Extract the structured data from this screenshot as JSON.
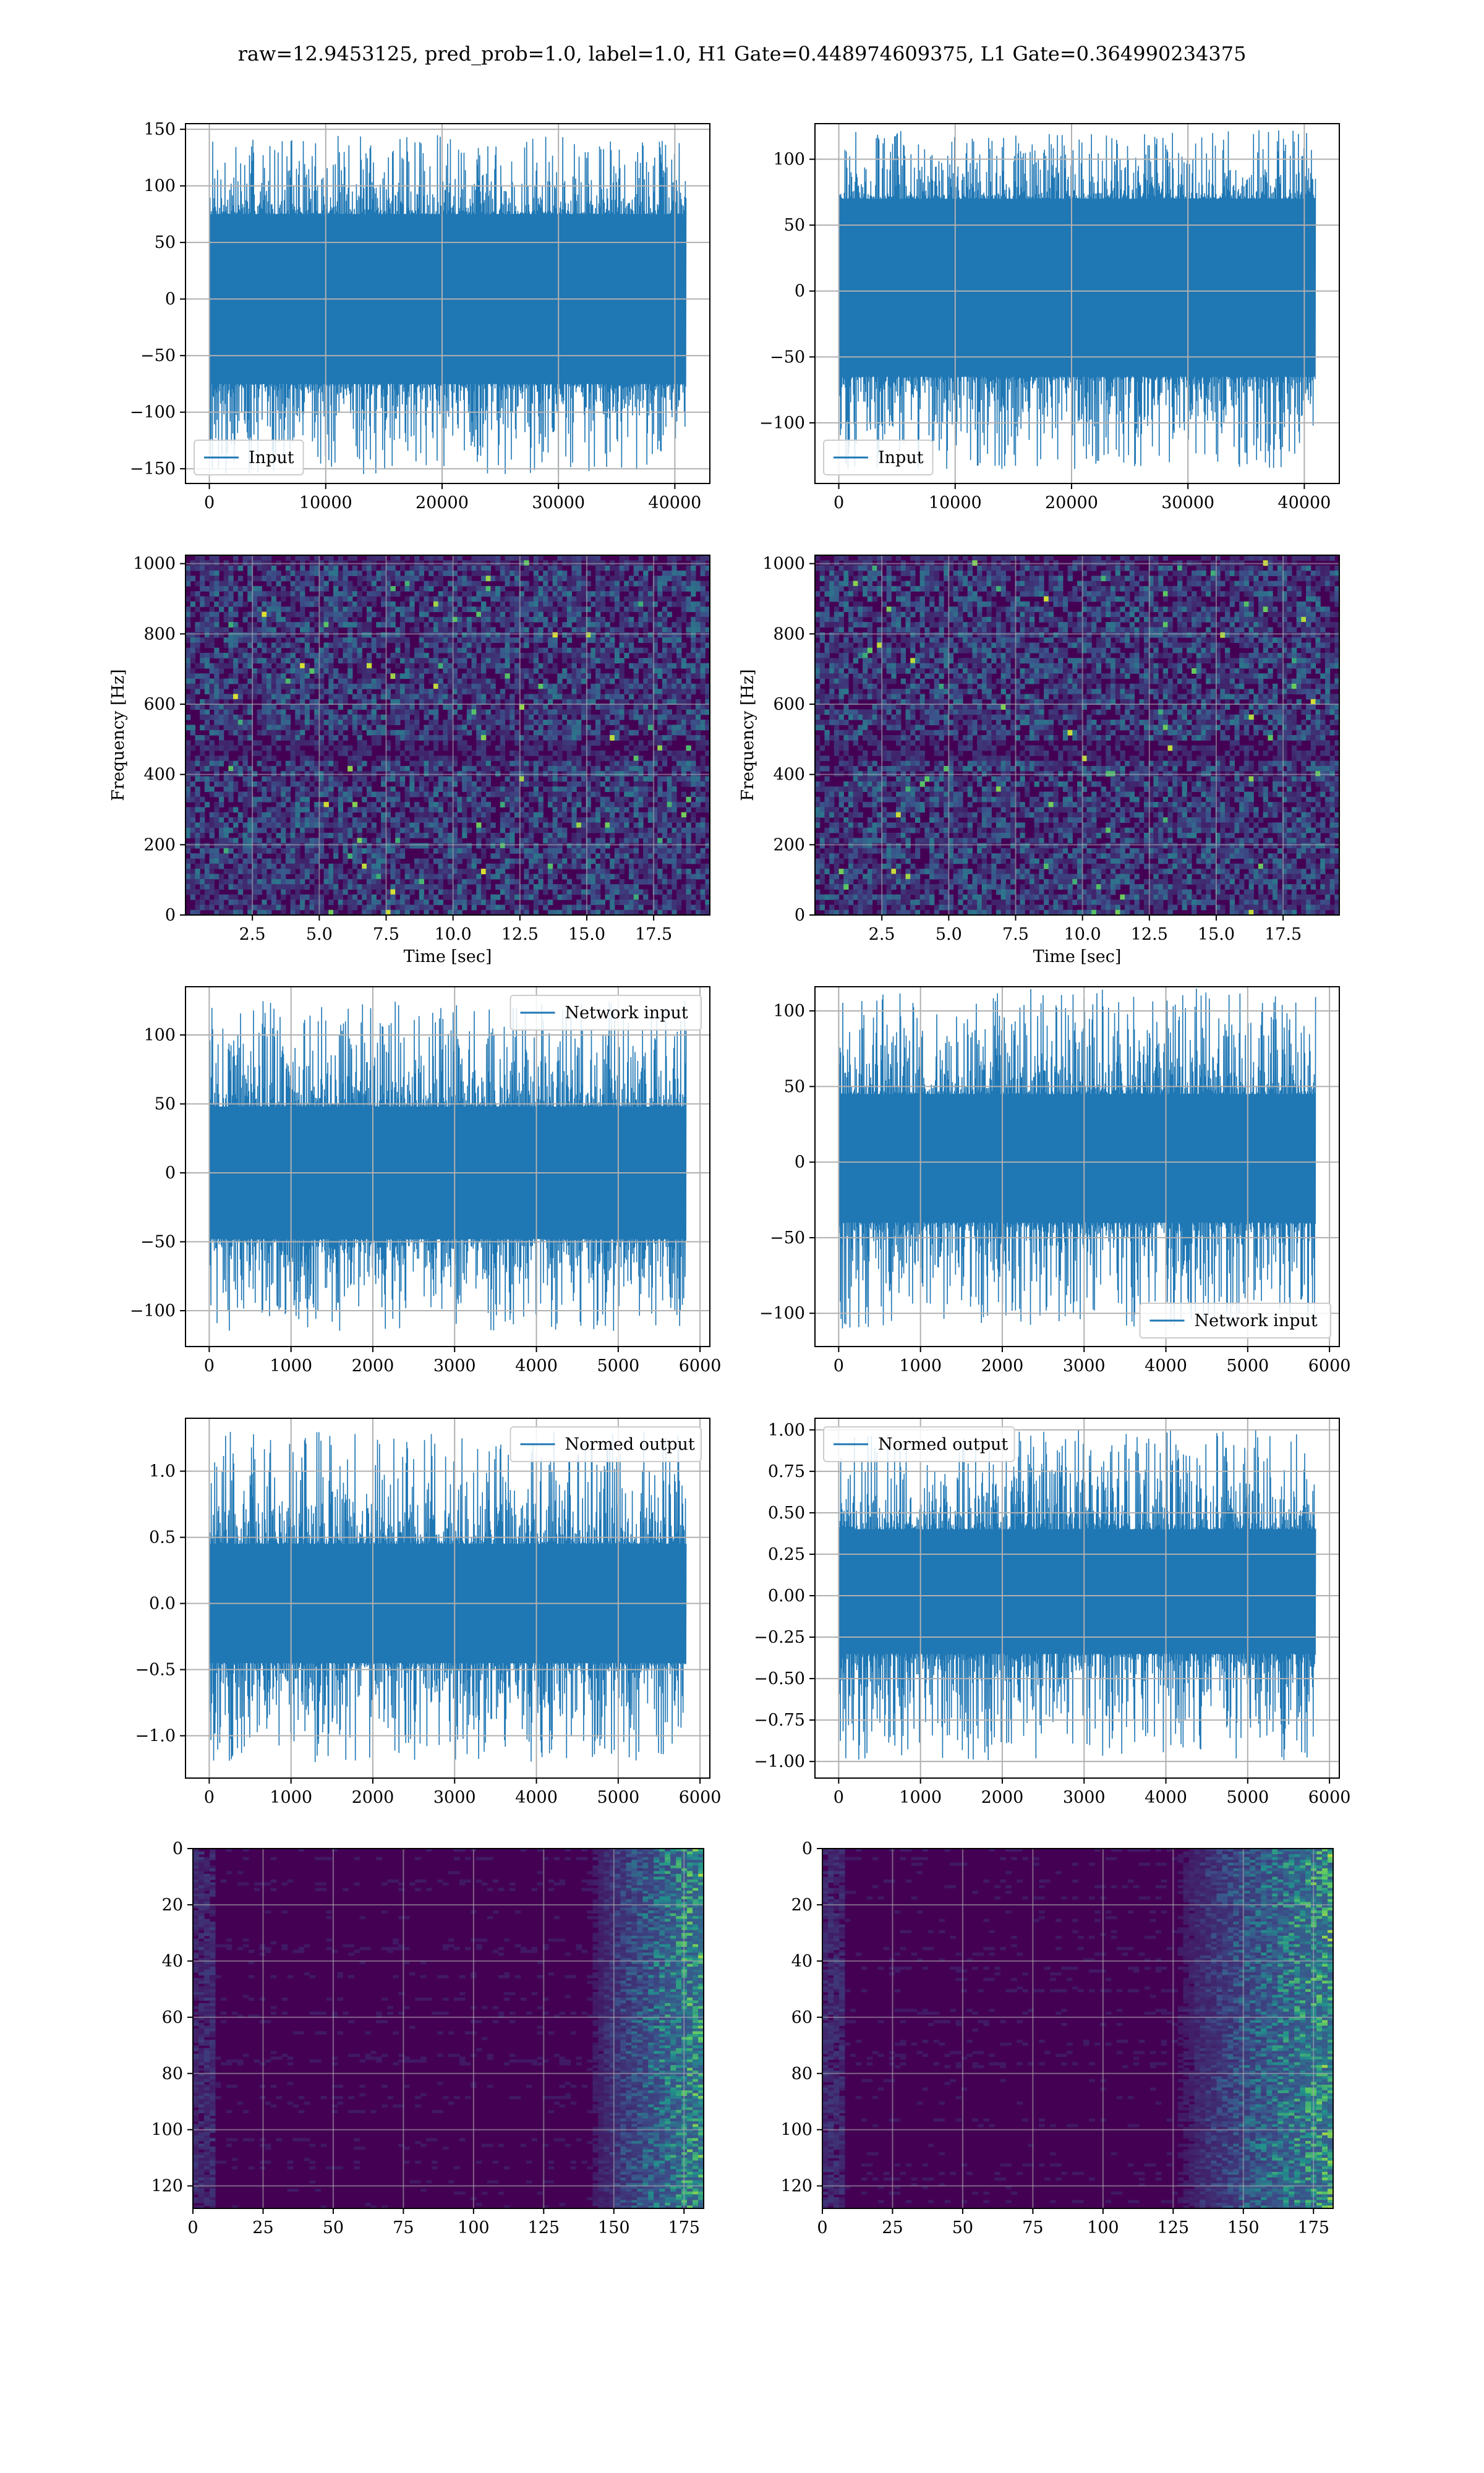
{
  "figure": {
    "title": "raw=12.9453125, pred_prob=1.0, label=1.0, H1 Gate=0.448974609375, L1 Gate=0.364990234375",
    "colors": {
      "line": "#1f77b4",
      "grid": "#b0b0b0",
      "viridis_dark": "#440154"
    }
  },
  "chart_data": [
    {
      "id": "h1-input",
      "type": "line",
      "title": "",
      "xlabel": "",
      "ylabel": "",
      "xlim": [
        -2048,
        43008
      ],
      "ylim": [
        -163,
        155
      ],
      "xticks": [
        0,
        10000,
        20000,
        30000,
        40000
      ],
      "yticks": [
        -150,
        -100,
        -50,
        0,
        50,
        100,
        150
      ],
      "series": [
        {
          "name": "Input",
          "x_range": [
            0,
            40960
          ],
          "envelope": [
            -75,
            75
          ],
          "peak_range": [
            -155,
            145
          ]
        }
      ],
      "legend": "lower-left",
      "grid": true
    },
    {
      "id": "l1-input",
      "type": "line",
      "title": "",
      "xlabel": "",
      "ylabel": "",
      "xlim": [
        -2048,
        43008
      ],
      "ylim": [
        -146,
        127
      ],
      "xticks": [
        0,
        10000,
        20000,
        30000,
        40000
      ],
      "yticks": [
        -100,
        -50,
        0,
        50,
        100
      ],
      "series": [
        {
          "name": "Input",
          "x_range": [
            0,
            40960
          ],
          "envelope": [
            -65,
            70
          ],
          "peak_range": [
            -135,
            122
          ]
        }
      ],
      "legend": "lower-left",
      "grid": true
    },
    {
      "id": "h1-spectrogram",
      "type": "heatmap",
      "title": "",
      "xlabel": "Time [sec]",
      "ylabel": "Frequency [Hz]",
      "xlim": [
        0,
        19.6
      ],
      "ylim": [
        0,
        1024
      ],
      "xticks": [
        2.5,
        5.0,
        7.5,
        10.0,
        12.5,
        15.0,
        17.5
      ],
      "yticks": [
        0,
        200,
        400,
        600,
        800,
        1000
      ],
      "colormap": "viridis",
      "grid": true
    },
    {
      "id": "l1-spectrogram",
      "type": "heatmap",
      "title": "",
      "xlabel": "Time [sec]",
      "ylabel": "Frequency [Hz]",
      "xlim": [
        0,
        19.6
      ],
      "ylim": [
        0,
        1024
      ],
      "xticks": [
        2.5,
        5.0,
        7.5,
        10.0,
        12.5,
        15.0,
        17.5
      ],
      "yticks": [
        0,
        200,
        400,
        600,
        800,
        1000
      ],
      "colormap": "viridis",
      "grid": true
    },
    {
      "id": "h1-network-input",
      "type": "line",
      "title": "",
      "xlabel": "",
      "ylabel": "",
      "xlim": [
        -290,
        6120
      ],
      "ylim": [
        -126,
        135
      ],
      "xticks": [
        0,
        1000,
        2000,
        3000,
        4000,
        5000,
        6000
      ],
      "yticks": [
        -100,
        -50,
        0,
        50,
        100
      ],
      "series": [
        {
          "name": "Network input",
          "x_range": [
            0,
            5830
          ],
          "envelope": [
            -48,
            48
          ],
          "peak_range": [
            -115,
            125
          ]
        }
      ],
      "legend": "top-right",
      "grid": true
    },
    {
      "id": "l1-network-input",
      "type": "line",
      "title": "",
      "xlabel": "",
      "ylabel": "",
      "xlim": [
        -290,
        6120
      ],
      "ylim": [
        -122,
        116
      ],
      "xticks": [
        0,
        1000,
        2000,
        3000,
        4000,
        5000,
        6000
      ],
      "yticks": [
        -100,
        -50,
        0,
        50,
        100
      ],
      "series": [
        {
          "name": "Network input",
          "x_range": [
            0,
            5830
          ],
          "envelope": [
            -40,
            45
          ],
          "peak_range": [
            -110,
            115
          ]
        }
      ],
      "legend": "lower-right",
      "grid": true
    },
    {
      "id": "h1-normed-output",
      "type": "line",
      "title": "",
      "xlabel": "",
      "ylabel": "",
      "xlim": [
        -290,
        6120
      ],
      "ylim": [
        -1.32,
        1.4
      ],
      "xticks": [
        0,
        1000,
        2000,
        3000,
        4000,
        5000,
        6000
      ],
      "yticks": [
        -1.0,
        -0.5,
        0.0,
        0.5,
        1.0
      ],
      "series": [
        {
          "name": "Normed output",
          "x_range": [
            0,
            5830
          ],
          "envelope": [
            -0.45,
            0.45
          ],
          "peak_range": [
            -1.2,
            1.3
          ]
        }
      ],
      "legend": "top-right",
      "grid": true
    },
    {
      "id": "l1-normed-output",
      "type": "line",
      "title": "",
      "xlabel": "",
      "ylabel": "",
      "xlim": [
        -290,
        6120
      ],
      "ylim": [
        -1.1,
        1.07
      ],
      "xticks": [
        0,
        1000,
        2000,
        3000,
        4000,
        5000,
        6000
      ],
      "yticks": [
        -1.0,
        -0.75,
        -0.5,
        -0.25,
        0.0,
        0.25,
        0.5,
        0.75,
        1.0
      ],
      "series": [
        {
          "name": "Normed output",
          "x_range": [
            0,
            5830
          ],
          "envelope": [
            -0.35,
            0.4
          ],
          "peak_range": [
            -1.0,
            1.0
          ]
        }
      ],
      "legend": "top-left",
      "grid": true
    },
    {
      "id": "h1-feature-map",
      "type": "heatmap",
      "title": "",
      "xlabel": "",
      "ylabel": "",
      "xlim": [
        0,
        182
      ],
      "ylim": [
        128,
        0
      ],
      "xticks": [
        0,
        25,
        50,
        75,
        100,
        125,
        150,
        175
      ],
      "yticks": [
        0,
        20,
        40,
        60,
        80,
        100,
        120
      ],
      "colormap": "viridis",
      "hot_region_x": [
        140,
        182
      ],
      "grid": true
    },
    {
      "id": "l1-feature-map",
      "type": "heatmap",
      "title": "",
      "xlabel": "",
      "ylabel": "",
      "xlim": [
        0,
        182
      ],
      "ylim": [
        128,
        0
      ],
      "xticks": [
        0,
        25,
        50,
        75,
        100,
        125,
        150,
        175
      ],
      "yticks": [
        0,
        20,
        40,
        60,
        80,
        100,
        120
      ],
      "colormap": "viridis",
      "hot_region_x": [
        125,
        182
      ],
      "grid": true
    }
  ]
}
